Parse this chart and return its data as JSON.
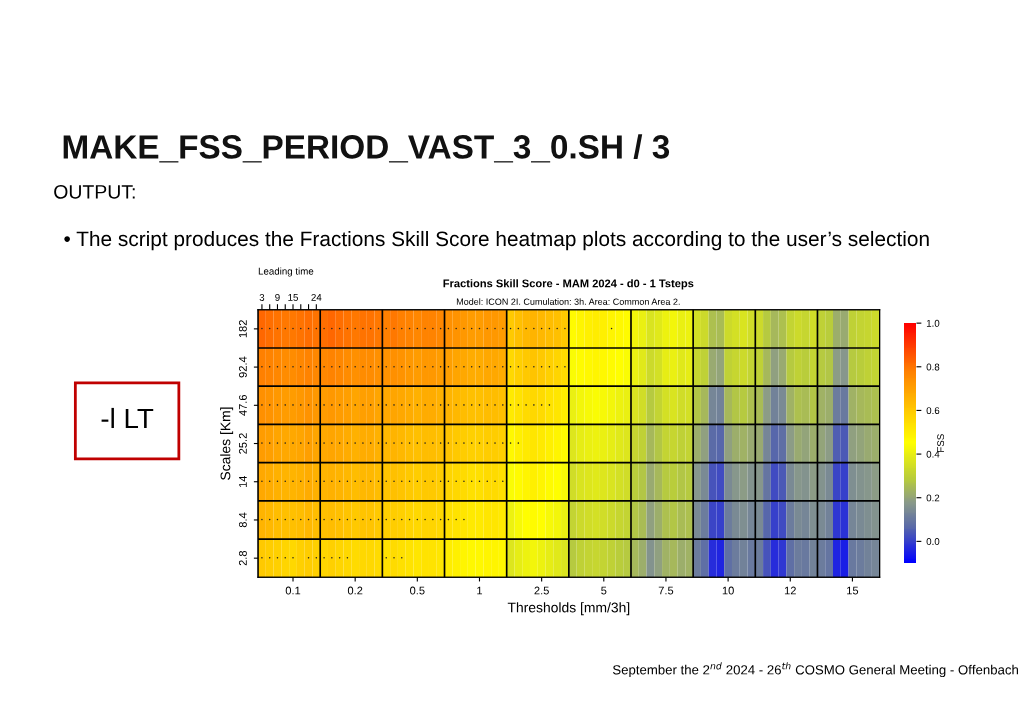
{
  "chart_data": {
    "type": "heatmap",
    "title": "Fractions Skill Score - MAM 2024 - d0 - 1 Tsteps",
    "subtitle": "Model: ICON 2I. Cumulation: 3h. Area: Common Area 2.",
    "xlabel": "Thresholds [mm/3h]",
    "ylabel": "Scales [Km]",
    "clabel": "FSS",
    "x2label": "Leading time",
    "annotations": [
      "MAKE_FSS_PERIOD_VAST_3_0.SH / 3",
      "OUTPUT:",
      "• The script produces the Fractions Skill Score heatmap plots according to the user’s selection",
      "-l LT",
      "September the 2$^{nd}$ 2024 - 26$^{th}$ COSMO General Meeting - Offenbach"
    ],
    "categories": [
      null,
      null,
      null,
      null,
      "0.1",
      null,
      null,
      null,
      null,
      null,
      null,
      null,
      "0.2",
      null,
      null,
      null,
      null,
      null,
      null,
      null,
      "0.5",
      null,
      null,
      null,
      null,
      null,
      null,
      null,
      "1",
      null,
      null,
      null,
      null,
      null,
      null,
      null,
      "2.5",
      null,
      null,
      null,
      null,
      null,
      null,
      null,
      "5",
      null,
      null,
      null,
      null,
      null,
      null,
      null,
      "7.5",
      null,
      null,
      null,
      null,
      null,
      null,
      null,
      "10",
      null,
      null,
      null,
      null,
      null,
      null,
      null,
      "12",
      null,
      null,
      null,
      null,
      null,
      null,
      null,
      "15",
      null,
      null,
      null
    ],
    "y_categories": [
      "182",
      "92.4",
      "47.6",
      "25.2",
      "14",
      "8.4",
      "2.8"
    ],
    "x2lim": [
      1.5,
      241.5
    ],
    "x2ticks": [
      3,
      {
        "value": 6,
        "label": null
      },
      9,
      {
        "value": 12,
        "label": null
      },
      15,
      {
        "value": 18,
        "label": null
      },
      {
        "value": 21,
        "label": null
      },
      24
    ],
    "clim": [
      -0.1,
      1.0
    ],
    "cticks": [
      {
        "value": 0,
        "label": "0.0"
      },
      {
        "value": 0.2,
        "label": "0.2"
      },
      {
        "value": 0.4,
        "label": "0.4"
      },
      {
        "value": 0.6,
        "label": "0.6"
      },
      {
        "value": 0.8,
        "label": "0.8"
      },
      {
        "value": 1.0,
        "label": "1.0"
      }
    ],
    "grid": true,
    "cells": [
      [
        0.82,
        0.81,
        0.8,
        0.79,
        0.79,
        0.8,
        0.81,
        0.8,
        0.81,
        0.82,
        0.81,
        0.8,
        0.79,
        0.8,
        0.8,
        0.79,
        0.78,
        0.79,
        0.78,
        0.77,
        0.76,
        0.77,
        0.77,
        0.76,
        0.74,
        0.73,
        0.72,
        0.71,
        0.71,
        0.72,
        0.72,
        0.71,
        0.6,
        0.62,
        0.64,
        0.65,
        0.64,
        0.63,
        0.62,
        0.6,
        0.46,
        0.48,
        0.49,
        0.5,
        0.49,
        0.48,
        0.47,
        0.46,
        0.42,
        0.4,
        0.36,
        0.38,
        0.41,
        0.42,
        0.4,
        0.41,
        0.35,
        0.33,
        0.26,
        0.25,
        0.33,
        0.35,
        0.36,
        0.34,
        0.33,
        0.28,
        0.24,
        0.26,
        0.31,
        0.33,
        0.32,
        0.34,
        0.3,
        0.29,
        0.22,
        0.21,
        0.3,
        0.31,
        0.32,
        0.33
      ],
      [
        0.78,
        0.77,
        0.76,
        0.75,
        0.75,
        0.76,
        0.77,
        0.76,
        0.76,
        0.77,
        0.76,
        0.75,
        0.74,
        0.75,
        0.75,
        0.74,
        0.73,
        0.74,
        0.73,
        0.72,
        0.71,
        0.72,
        0.72,
        0.71,
        0.7,
        0.69,
        0.68,
        0.67,
        0.67,
        0.68,
        0.68,
        0.67,
        0.56,
        0.58,
        0.6,
        0.61,
        0.6,
        0.58,
        0.57,
        0.55,
        0.44,
        0.46,
        0.47,
        0.48,
        0.47,
        0.46,
        0.45,
        0.44,
        0.4,
        0.38,
        0.33,
        0.35,
        0.39,
        0.4,
        0.38,
        0.39,
        0.32,
        0.3,
        0.21,
        0.2,
        0.3,
        0.32,
        0.33,
        0.31,
        0.3,
        0.24,
        0.19,
        0.21,
        0.28,
        0.3,
        0.29,
        0.31,
        0.28,
        0.27,
        0.18,
        0.17,
        0.28,
        0.29,
        0.3,
        0.31
      ],
      [
        0.74,
        0.73,
        0.72,
        0.71,
        0.71,
        0.72,
        0.73,
        0.72,
        0.71,
        0.72,
        0.71,
        0.7,
        0.69,
        0.7,
        0.7,
        0.69,
        0.68,
        0.69,
        0.68,
        0.67,
        0.66,
        0.67,
        0.67,
        0.66,
        0.65,
        0.64,
        0.63,
        0.62,
        0.62,
        0.63,
        0.63,
        0.62,
        0.51,
        0.53,
        0.55,
        0.56,
        0.55,
        0.53,
        0.52,
        0.5,
        0.4,
        0.42,
        0.43,
        0.44,
        0.43,
        0.42,
        0.41,
        0.4,
        0.36,
        0.34,
        0.28,
        0.31,
        0.35,
        0.36,
        0.34,
        0.35,
        0.27,
        0.24,
        0.13,
        0.12,
        0.24,
        0.27,
        0.28,
        0.26,
        0.25,
        0.18,
        0.12,
        0.14,
        0.23,
        0.26,
        0.25,
        0.27,
        0.23,
        0.22,
        0.11,
        0.1,
        0.23,
        0.24,
        0.25,
        0.26
      ],
      [
        0.71,
        0.7,
        0.69,
        0.68,
        0.68,
        0.69,
        0.7,
        0.69,
        0.68,
        0.69,
        0.68,
        0.67,
        0.66,
        0.67,
        0.67,
        0.66,
        0.64,
        0.65,
        0.64,
        0.63,
        0.62,
        0.63,
        0.63,
        0.62,
        0.61,
        0.6,
        0.59,
        0.58,
        0.58,
        0.59,
        0.59,
        0.58,
        0.47,
        0.49,
        0.51,
        0.52,
        0.51,
        0.49,
        0.48,
        0.46,
        0.37,
        0.39,
        0.4,
        0.41,
        0.4,
        0.39,
        0.38,
        0.37,
        0.32,
        0.3,
        0.24,
        0.27,
        0.31,
        0.32,
        0.3,
        0.31,
        0.22,
        0.19,
        0.07,
        0.06,
        0.19,
        0.22,
        0.23,
        0.21,
        0.21,
        0.13,
        0.06,
        0.08,
        0.18,
        0.21,
        0.2,
        0.22,
        0.2,
        0.18,
        0.05,
        0.04,
        0.19,
        0.2,
        0.21,
        0.22
      ],
      [
        0.68,
        0.67,
        0.66,
        0.65,
        0.65,
        0.66,
        0.67,
        0.66,
        0.65,
        0.66,
        0.65,
        0.64,
        0.63,
        0.64,
        0.64,
        0.63,
        0.61,
        0.62,
        0.61,
        0.6,
        0.59,
        0.6,
        0.6,
        0.59,
        0.57,
        0.56,
        0.55,
        0.54,
        0.54,
        0.55,
        0.55,
        0.54,
        0.44,
        0.46,
        0.48,
        0.49,
        0.48,
        0.46,
        0.45,
        0.43,
        0.34,
        0.36,
        0.37,
        0.38,
        0.37,
        0.36,
        0.35,
        0.34,
        0.29,
        0.27,
        0.21,
        0.24,
        0.28,
        0.29,
        0.27,
        0.28,
        0.17,
        0.14,
        0.03,
        0.02,
        0.14,
        0.17,
        0.18,
        0.16,
        0.17,
        0.09,
        0.02,
        0.04,
        0.14,
        0.17,
        0.16,
        0.18,
        0.16,
        0.14,
        0.01,
        0.0,
        0.15,
        0.16,
        0.17,
        0.18
      ],
      [
        0.65,
        0.64,
        0.63,
        0.62,
        0.62,
        0.63,
        0.64,
        0.63,
        0.62,
        0.63,
        0.62,
        0.61,
        0.6,
        0.61,
        0.61,
        0.6,
        0.58,
        0.59,
        0.58,
        0.57,
        0.56,
        0.57,
        0.57,
        0.56,
        0.54,
        0.53,
        0.52,
        0.51,
        0.51,
        0.52,
        0.52,
        0.51,
        0.41,
        0.43,
        0.45,
        0.46,
        0.45,
        0.43,
        0.42,
        0.4,
        0.31,
        0.33,
        0.34,
        0.35,
        0.34,
        0.33,
        0.32,
        0.31,
        0.27,
        0.25,
        0.19,
        0.22,
        0.26,
        0.27,
        0.25,
        0.26,
        0.14,
        0.11,
        0.01,
        0.0,
        0.11,
        0.14,
        0.15,
        0.13,
        0.14,
        0.06,
        0.0,
        0.02,
        0.11,
        0.14,
        0.13,
        0.15,
        0.14,
        0.12,
        -0.01,
        -0.02,
        0.13,
        0.14,
        0.15,
        0.16
      ],
      [
        0.6,
        0.59,
        0.58,
        0.57,
        0.56,
        0.58,
        0.59,
        0.58,
        0.57,
        0.58,
        0.57,
        0.56,
        0.55,
        0.56,
        0.56,
        0.55,
        0.54,
        0.55,
        0.54,
        0.53,
        0.52,
        0.53,
        0.53,
        0.52,
        0.5,
        0.49,
        0.48,
        0.47,
        0.47,
        0.48,
        0.48,
        0.47,
        0.37,
        0.39,
        0.41,
        0.42,
        0.41,
        0.39,
        0.38,
        0.36,
        0.28,
        0.3,
        0.31,
        0.32,
        0.31,
        0.3,
        0.29,
        0.28,
        0.24,
        0.22,
        0.16,
        0.19,
        0.23,
        0.24,
        0.22,
        0.23,
        0.11,
        0.08,
        -0.03,
        -0.04,
        0.08,
        0.11,
        0.12,
        0.1,
        0.11,
        0.03,
        -0.03,
        -0.01,
        0.08,
        0.11,
        0.1,
        0.12,
        0.11,
        0.09,
        -0.04,
        -0.05,
        0.1,
        0.11,
        0.12,
        0.13
      ]
    ],
    "cell_labels": [
      [
        "•",
        "•",
        "•",
        "•",
        "•",
        "•",
        "•",
        "•",
        "•",
        "•",
        "•",
        "•",
        "•",
        "•",
        "•",
        "•",
        "•",
        "•",
        "•",
        "•",
        "•",
        "•",
        "•",
        "•",
        "•",
        "•",
        "•",
        "•",
        "•",
        "•",
        "•",
        "•",
        "•",
        "•",
        "•",
        "•",
        "•",
        "•",
        "•",
        "•",
        null,
        null,
        null,
        null,
        null,
        "•",
        null,
        null,
        null,
        null,
        null,
        null,
        null,
        null,
        null,
        null,
        null,
        null,
        null,
        null,
        null,
        null,
        null,
        null,
        null,
        null,
        null,
        null,
        null,
        null,
        null,
        null,
        null,
        null,
        null,
        null,
        null,
        null,
        null,
        null
      ],
      [
        "•",
        "•",
        "•",
        "•",
        "•",
        "•",
        "•",
        "•",
        "•",
        "•",
        "•",
        "•",
        "•",
        "•",
        "•",
        "•",
        "•",
        "•",
        "•",
        "•",
        "•",
        "•",
        "•",
        "•",
        "•",
        "•",
        "•",
        "•",
        "•",
        "•",
        "•",
        "•",
        "•",
        "•",
        "•",
        "•",
        "•",
        "•",
        "•",
        "•",
        null,
        null,
        null,
        null,
        null,
        null,
        null,
        null,
        null,
        null,
        null,
        null,
        null,
        null,
        null,
        null,
        null,
        null,
        null,
        null,
        null,
        null,
        null,
        null,
        null,
        null,
        null,
        null,
        null,
        null,
        null,
        null,
        null,
        null,
        null,
        null,
        null,
        null,
        null,
        null
      ],
      [
        "•",
        "•",
        "•",
        "•",
        "•",
        "•",
        "•",
        "•",
        "•",
        "•",
        "•",
        "•",
        "•",
        "•",
        "•",
        "•",
        "•",
        "•",
        "•",
        "•",
        "•",
        "•",
        "•",
        "•",
        "•",
        "•",
        "•",
        "•",
        "•",
        "•",
        "•",
        "•",
        "•",
        "•",
        "•",
        "•",
        "•",
        "•",
        null,
        null,
        null,
        null,
        null,
        null,
        null,
        null,
        null,
        null,
        null,
        null,
        null,
        null,
        null,
        null,
        null,
        null,
        null,
        null,
        null,
        null,
        null,
        null,
        null,
        null,
        null,
        null,
        null,
        null,
        null,
        null,
        null,
        null,
        null,
        null,
        null,
        null,
        null,
        null,
        null,
        null
      ],
      [
        "•",
        "•",
        "•",
        "•",
        "•",
        "•",
        "•",
        "•",
        "•",
        "•",
        "•",
        "•",
        "•",
        "•",
        "•",
        "•",
        "•",
        "•",
        "•",
        "•",
        "•",
        "•",
        "•",
        "•",
        "•",
        "•",
        "•",
        "•",
        "•",
        "•",
        "•",
        "•",
        "•",
        "•",
        null,
        null,
        null,
        null,
        null,
        null,
        null,
        null,
        null,
        null,
        null,
        null,
        null,
        null,
        null,
        null,
        null,
        null,
        null,
        null,
        null,
        null,
        null,
        null,
        null,
        null,
        null,
        null,
        null,
        null,
        null,
        null,
        null,
        null,
        null,
        null,
        null,
        null,
        null,
        null,
        null,
        null,
        null,
        null,
        null,
        null
      ],
      [
        "•",
        "•",
        "•",
        "•",
        "•",
        "•",
        "•",
        "•",
        "•",
        "•",
        "•",
        "•",
        "•",
        "•",
        "•",
        "•",
        "•",
        "•",
        "•",
        "•",
        "•",
        "•",
        "•",
        "•",
        "•",
        "•",
        "•",
        "•",
        "•",
        "•",
        "•",
        "•",
        null,
        null,
        null,
        null,
        null,
        null,
        null,
        null,
        null,
        null,
        null,
        null,
        null,
        null,
        null,
        null,
        null,
        null,
        null,
        null,
        null,
        null,
        null,
        null,
        null,
        null,
        null,
        null,
        null,
        null,
        null,
        null,
        null,
        null,
        null,
        null,
        null,
        null,
        null,
        null,
        null,
        null,
        null,
        null,
        null,
        null,
        null,
        null
      ],
      [
        "•",
        "•",
        "•",
        "•",
        "•",
        "•",
        "•",
        "•",
        "•",
        "•",
        "•",
        "•",
        "•",
        "•",
        "•",
        "•",
        "•",
        "•",
        "•",
        "•",
        "•",
        "•",
        "•",
        "•",
        "•",
        "•",
        "•",
        null,
        null,
        null,
        null,
        null,
        null,
        null,
        null,
        null,
        null,
        null,
        null,
        null,
        null,
        null,
        null,
        null,
        null,
        null,
        null,
        null,
        null,
        null,
        null,
        null,
        null,
        null,
        null,
        null,
        null,
        null,
        null,
        null,
        null,
        null,
        null,
        null,
        null,
        null,
        null,
        null,
        null,
        null,
        null,
        null,
        null,
        null,
        null,
        null,
        null,
        null,
        null,
        null
      ],
      [
        "•",
        "•",
        "•",
        "•",
        "•",
        null,
        "•",
        "•",
        "•",
        "•",
        "•",
        "•",
        null,
        null,
        null,
        null,
        "•",
        "•",
        "•",
        null,
        null,
        null,
        null,
        null,
        null,
        null,
        null,
        null,
        null,
        null,
        null,
        null,
        null,
        null,
        null,
        null,
        null,
        null,
        null,
        null,
        null,
        null,
        null,
        null,
        null,
        null,
        null,
        null,
        null,
        null,
        null,
        null,
        null,
        null,
        null,
        null,
        null,
        null,
        null,
        null,
        null,
        null,
        null,
        null,
        null,
        null,
        null,
        null,
        null,
        null,
        null,
        null,
        null,
        null,
        null,
        null,
        null,
        null,
        null,
        null
      ]
    ]
  }
}
